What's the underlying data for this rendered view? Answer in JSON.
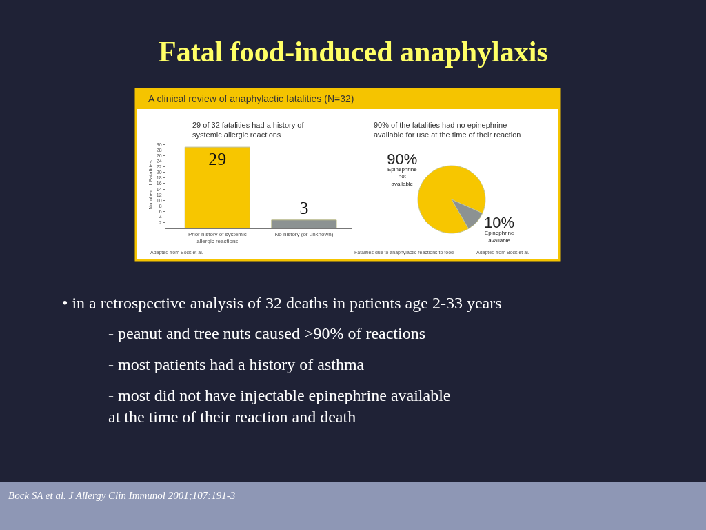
{
  "chart_data": [
    {
      "type": "other",
      "title": "Fatal food-induced anaphylaxis",
      "subtitle": "A clinical review of anaphylactic fatalities (N=32)",
      "annotations": [
        "• in a retrospective analysis of 32 deaths in patients age 2-33 years",
        "- peanut and tree nuts caused >90% of reactions",
        "- most patients had a history of asthma",
        "- most did not have injectable epinephrine available\nat the time of their reaction and death",
        "Bock SA et al. J Allergy Clin Immunol 2001;107:191-3"
      ]
    },
    {
      "type": "bar",
      "title": "29 of 32 fatalities had a history of systemic allergic reactions",
      "ylabel": "Number of Fatalities",
      "categories": [
        "Prior history of systemic allergic reactions",
        "No history (or unknown)"
      ],
      "values": [
        29,
        3
      ],
      "colors": [
        "#f7c600",
        "#8c9292"
      ],
      "data_labels": true,
      "ylim": [
        0,
        31
      ],
      "yticks": [
        2,
        4,
        6,
        8,
        10,
        12,
        14,
        16,
        18,
        20,
        22,
        24,
        26,
        28,
        30
      ],
      "annotations": [
        "Adapted from Bock et al."
      ]
    },
    {
      "type": "pie",
      "title": "90% of the fatalities had no epinephrine available for use at the time of their reaction",
      "categories": [
        "Epinephrine not available",
        "Epinephrine available"
      ],
      "values": [
        90,
        10
      ],
      "colors": [
        "#f7c600",
        "#8c9292"
      ],
      "value_labels": [
        "90%",
        "10%"
      ],
      "annotations": [
        "Fatalities due to anaphylactic reactions to food",
        "Adapted from Bock et al."
      ]
    }
  ]
}
